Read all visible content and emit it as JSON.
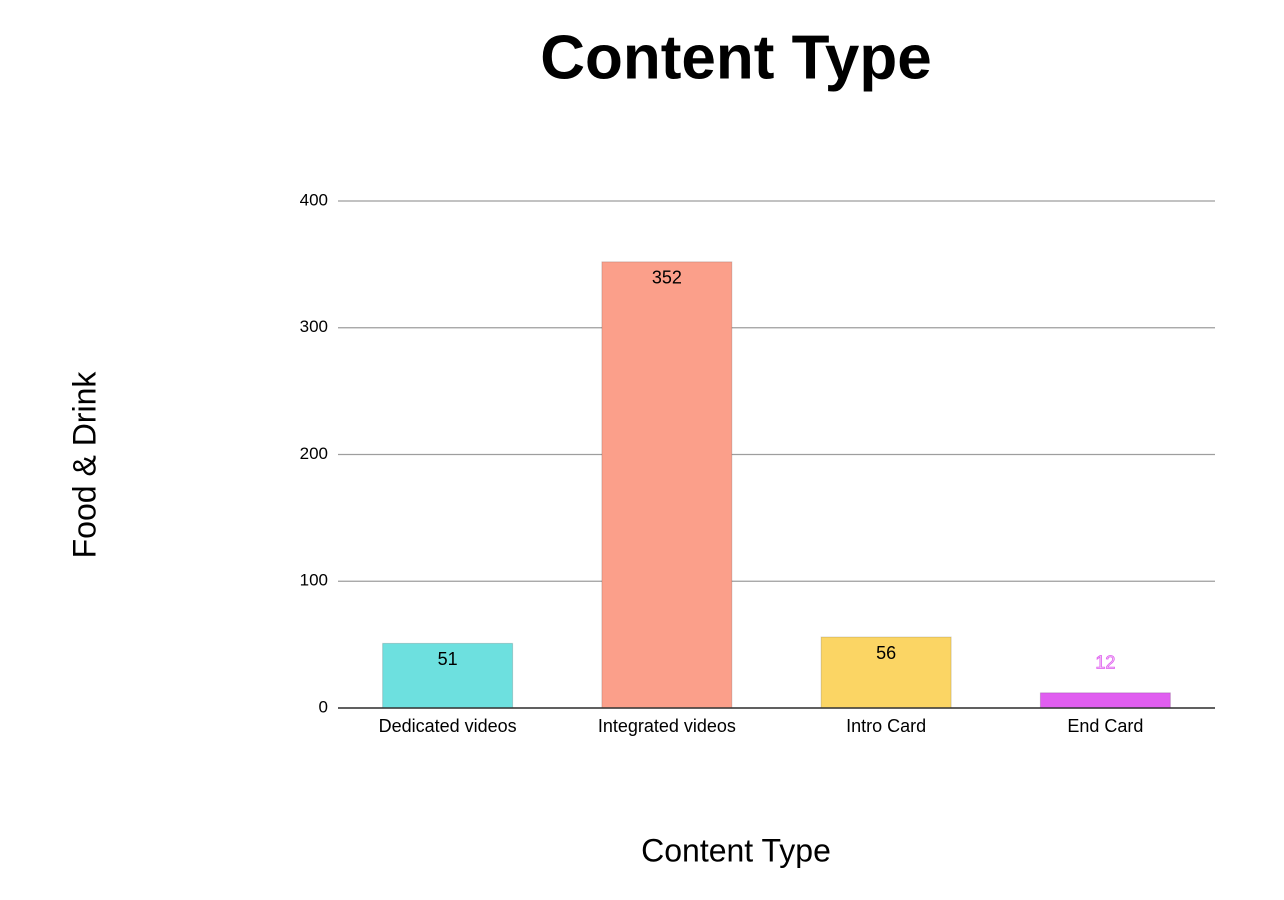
{
  "chart_data": {
    "type": "bar",
    "title": "Content Type",
    "x_label": "Content Type",
    "y_label": "Food & Drink",
    "categories": [
      "Dedicated videos",
      "Integrated videos",
      "Intro Card",
      "End Card"
    ],
    "values": [
      51,
      352,
      56,
      12
    ],
    "colors": [
      "#6de0df",
      "#fb9f8a",
      "#fbd564",
      "#e05ef0"
    ],
    "ylim": [
      0,
      400
    ],
    "yticks": [
      0,
      100,
      200,
      300,
      400
    ],
    "grid": true
  }
}
